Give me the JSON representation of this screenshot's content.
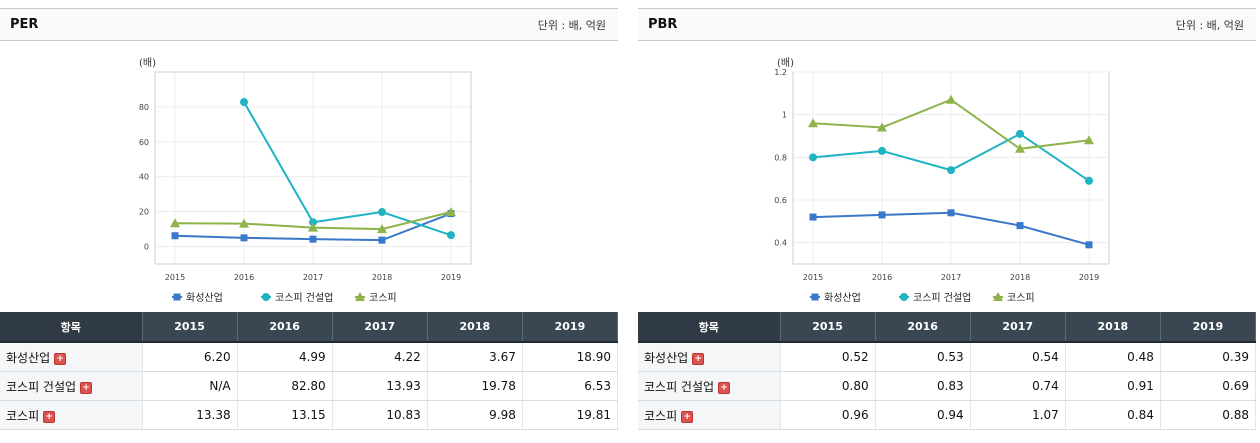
{
  "per": {
    "title": "PER",
    "unit": "단위 : 배, 억원",
    "header_label": "항목",
    "years": [
      "2015",
      "2016",
      "2017",
      "2018",
      "2019"
    ],
    "rows": [
      {
        "label": "화성산업",
        "values": [
          "6.20",
          "4.99",
          "4.22",
          "3.67",
          "18.90"
        ]
      },
      {
        "label": "코스피 건설업",
        "values": [
          "N/A",
          "82.80",
          "13.93",
          "19.78",
          "6.53"
        ]
      },
      {
        "label": "코스피",
        "values": [
          "13.38",
          "13.15",
          "10.83",
          "9.98",
          "19.81"
        ]
      }
    ]
  },
  "pbr": {
    "title": "PBR",
    "unit": "단위 : 배, 억원",
    "header_label": "항목",
    "years": [
      "2015",
      "2016",
      "2017",
      "2018",
      "2019"
    ],
    "rows": [
      {
        "label": "화성산업",
        "values": [
          "0.52",
          "0.53",
          "0.54",
          "0.48",
          "0.39"
        ]
      },
      {
        "label": "코스피 건설업",
        "values": [
          "0.80",
          "0.83",
          "0.74",
          "0.91",
          "0.69"
        ]
      },
      {
        "label": "코스피",
        "values": [
          "0.96",
          "0.94",
          "1.07",
          "0.84",
          "0.88"
        ]
      }
    ]
  },
  "chart_data": [
    {
      "type": "line",
      "ylabel": "(배)",
      "x": [
        "2015",
        "2016",
        "2017",
        "2018",
        "2019"
      ],
      "ylim": [
        -10,
        100
      ],
      "yticks": [
        0,
        20,
        40,
        60,
        80
      ],
      "ytick_labels": [
        "0",
        "20",
        "40",
        "60",
        "80"
      ],
      "grid": true,
      "legend_position": "bottom",
      "series": [
        {
          "name": "화성산업",
          "values": [
            6.2,
            4.99,
            4.22,
            3.67,
            18.9
          ],
          "color": "#3a78c9",
          "marker": "square"
        },
        {
          "name": "코스피 건설업",
          "values": [
            null,
            82.8,
            13.93,
            19.78,
            6.53
          ],
          "color": "#1fb3c3",
          "marker": "diamond"
        },
        {
          "name": "코스피",
          "values": [
            13.38,
            13.15,
            10.83,
            9.98,
            19.81
          ],
          "color": "#8db34a",
          "marker": "triangle"
        }
      ]
    },
    {
      "type": "line",
      "ylabel": "(배)",
      "x": [
        "2015",
        "2016",
        "2017",
        "2018",
        "2019"
      ],
      "ylim": [
        0.3,
        1.2
      ],
      "yticks": [
        0.4,
        0.6,
        0.8,
        1.0,
        1.2
      ],
      "ytick_labels": [
        "0.4",
        "0.6",
        "0.8",
        "1",
        "1.2"
      ],
      "grid": true,
      "legend_position": "bottom",
      "series": [
        {
          "name": "화성산업",
          "values": [
            0.52,
            0.53,
            0.54,
            0.48,
            0.39
          ],
          "color": "#3a78c9",
          "marker": "square"
        },
        {
          "name": "코스피 건설업",
          "values": [
            0.8,
            0.83,
            0.74,
            0.91,
            0.69
          ],
          "color": "#1fb3c3",
          "marker": "diamond"
        },
        {
          "name": "코스피",
          "values": [
            0.96,
            0.94,
            1.07,
            0.84,
            0.88
          ],
          "color": "#8db34a",
          "marker": "triangle"
        }
      ]
    }
  ]
}
